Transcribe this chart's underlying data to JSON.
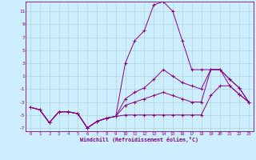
{
  "xlabel": "Windchill (Refroidissement éolien,°C)",
  "background_color": "#cceeff",
  "grid_color": "#aacccc",
  "line_color": "#880088",
  "xlim": [
    -0.5,
    23.5
  ],
  "ylim": [
    -7.5,
    12.5
  ],
  "yticks": [
    -7,
    -5,
    -3,
    -1,
    1,
    3,
    5,
    7,
    9,
    11
  ],
  "xticks": [
    0,
    1,
    2,
    3,
    4,
    5,
    6,
    7,
    8,
    9,
    10,
    11,
    12,
    13,
    14,
    15,
    16,
    17,
    18,
    19,
    20,
    21,
    22,
    23
  ],
  "x": [
    0,
    1,
    2,
    3,
    4,
    5,
    6,
    7,
    8,
    9,
    10,
    11,
    12,
    13,
    14,
    15,
    16,
    17,
    18,
    19,
    20,
    21,
    22,
    23
  ],
  "line1": [
    -3.8,
    -4.2,
    -6.2,
    -4.5,
    -4.5,
    -4.8,
    -7.0,
    -6.0,
    -5.5,
    -5.2,
    3.0,
    6.5,
    8.0,
    12.0,
    12.5,
    11.0,
    6.5,
    2.0,
    2.0,
    2.0,
    2.0,
    -0.5,
    -1.8,
    -3.0
  ],
  "line2": [
    -3.8,
    -4.2,
    -6.2,
    -4.5,
    -4.5,
    -4.8,
    -7.0,
    -6.0,
    -5.5,
    -5.2,
    -2.5,
    -1.5,
    -0.8,
    0.5,
    2.0,
    1.0,
    0.0,
    -0.5,
    -1.0,
    2.0,
    2.0,
    0.5,
    -0.8,
    -3.0
  ],
  "line3": [
    -3.8,
    -4.2,
    -6.2,
    -4.5,
    -4.5,
    -4.8,
    -7.0,
    -6.0,
    -5.5,
    -5.2,
    -3.5,
    -3.0,
    -2.5,
    -2.0,
    -1.5,
    -2.0,
    -2.5,
    -3.0,
    -3.0,
    2.0,
    2.0,
    0.5,
    -0.8,
    -3.0
  ],
  "line4": [
    -3.8,
    -4.2,
    -6.2,
    -4.5,
    -4.5,
    -4.8,
    -7.0,
    -6.0,
    -5.5,
    -5.2,
    -5.0,
    -5.0,
    -5.0,
    -5.0,
    -5.0,
    -5.0,
    -5.0,
    -5.0,
    -5.0,
    -2.0,
    -0.5,
    -0.5,
    -1.8,
    -3.0
  ]
}
